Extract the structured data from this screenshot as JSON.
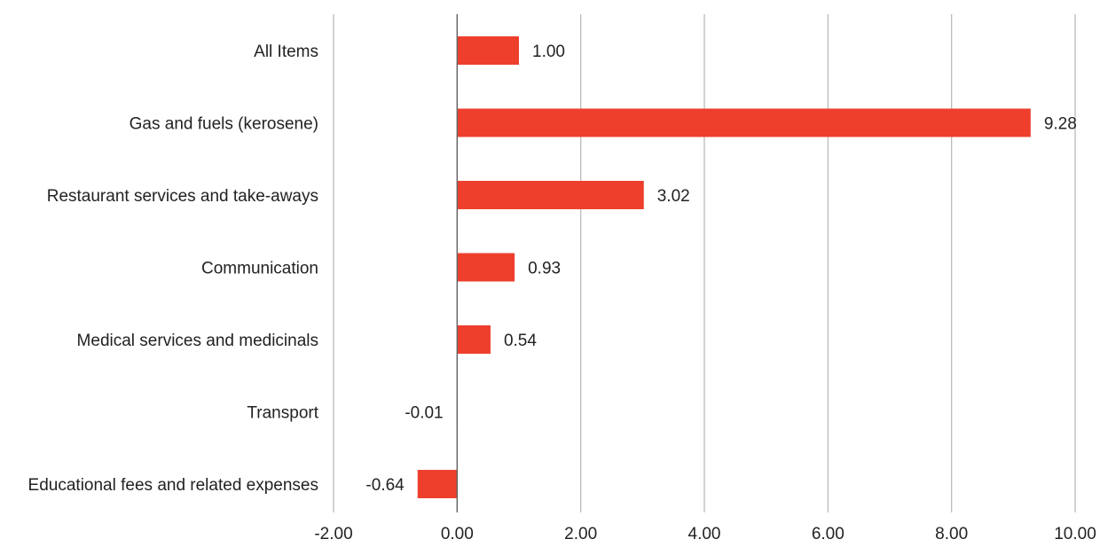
{
  "chart_data": {
    "type": "bar",
    "orientation": "horizontal",
    "title": "",
    "xlabel": "",
    "ylabel": "",
    "categories": [
      "All Items",
      "Gas and fuels (kerosene)",
      "Restaurant services and take-aways",
      "Communication",
      "Medical services and medicinals",
      "Transport",
      "Educational fees and related expenses"
    ],
    "values": [
      1.0,
      9.28,
      3.02,
      0.93,
      0.54,
      -0.01,
      -0.64
    ],
    "value_labels": [
      "1.00",
      "9.28",
      "3.02",
      "0.93",
      "0.54",
      "-0.01",
      "-0.64"
    ],
    "xlim": [
      -2,
      10
    ],
    "xticks": [
      -2,
      0,
      2,
      4,
      6,
      8,
      10
    ],
    "xtick_labels": [
      "-2.00",
      "0.00",
      "2.00",
      "4.00",
      "6.00",
      "8.00",
      "10.00"
    ],
    "grid": "vertical",
    "legend": "none",
    "colors": {
      "bar": "#EE3F2D",
      "grid": "#BBBBBB",
      "zero_axis": "#666666",
      "text": "#222222"
    }
  }
}
